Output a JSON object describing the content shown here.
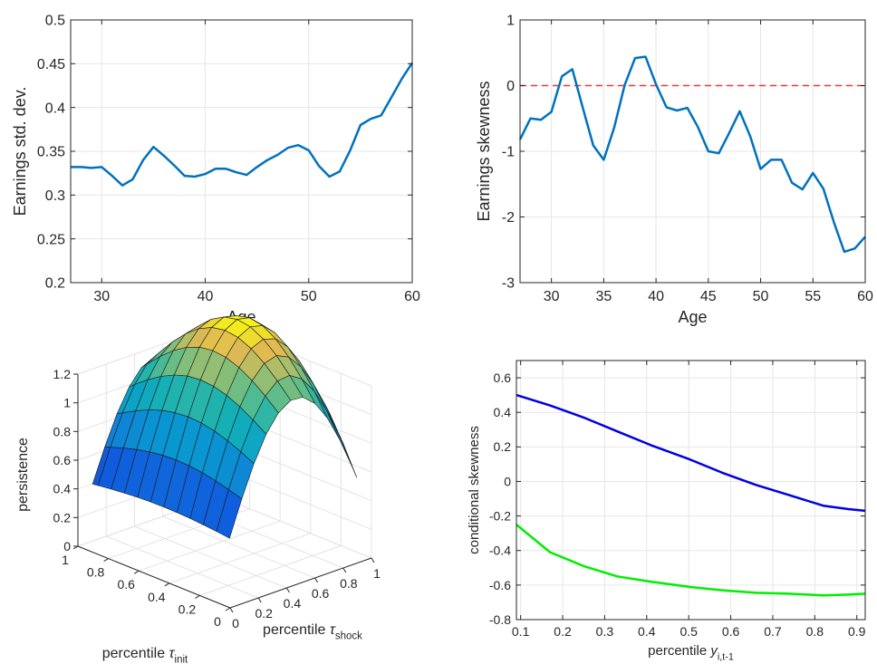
{
  "chart_data": [
    {
      "type": "line",
      "xlabel": "Age",
      "ylabel": "Earnings std. dev.",
      "xlim": [
        27,
        60
      ],
      "ylim": [
        0.2,
        0.5
      ],
      "xticks": [
        30,
        40,
        50,
        60
      ],
      "yticks": [
        0.2,
        0.25,
        0.3,
        0.35,
        0.4,
        0.45,
        0.5
      ],
      "grid": true,
      "series": [
        {
          "color": "#0072BD",
          "x": [
            27,
            28,
            29,
            30,
            31,
            32,
            33,
            34,
            35,
            36,
            37,
            38,
            39,
            40,
            41,
            42,
            43,
            44,
            45,
            46,
            47,
            48,
            49,
            50,
            51,
            52,
            53,
            54,
            55,
            56,
            57,
            58,
            59,
            60
          ],
          "y": [
            0.332,
            0.332,
            0.331,
            0.332,
            0.322,
            0.311,
            0.318,
            0.34,
            0.355,
            0.345,
            0.334,
            0.322,
            0.321,
            0.324,
            0.33,
            0.33,
            0.326,
            0.323,
            0.332,
            0.34,
            0.346,
            0.354,
            0.357,
            0.351,
            0.333,
            0.321,
            0.327,
            0.351,
            0.38,
            0.387,
            0.391,
            0.412,
            0.433,
            0.451
          ]
        }
      ]
    },
    {
      "type": "line",
      "xlabel": "Age",
      "ylabel": "Earnings skewness",
      "xlim": [
        27,
        60
      ],
      "ylim": [
        -3,
        1
      ],
      "xticks": [
        30,
        35,
        40,
        45,
        50,
        55,
        60
      ],
      "yticks": [
        -3,
        -2,
        -1,
        0,
        1
      ],
      "grid": true,
      "reference_line": {
        "y": 0,
        "style": "dashed",
        "color": "#FF3333"
      },
      "series": [
        {
          "color": "#0072BD",
          "x": [
            27,
            28,
            29,
            30,
            31,
            32,
            33,
            34,
            35,
            36,
            37,
            38,
            39,
            40,
            41,
            42,
            43,
            44,
            45,
            46,
            47,
            48,
            49,
            50,
            51,
            52,
            53,
            54,
            55,
            56,
            57,
            58,
            59,
            60
          ],
          "y": [
            -0.82,
            -0.5,
            -0.52,
            -0.4,
            0.14,
            0.25,
            -0.34,
            -0.91,
            -1.13,
            -0.64,
            0.01,
            0.42,
            0.44,
            0.02,
            -0.33,
            -0.38,
            -0.34,
            -0.63,
            -1.0,
            -1.03,
            -0.72,
            -0.39,
            -0.77,
            -1.27,
            -1.13,
            -1.13,
            -1.48,
            -1.58,
            -1.33,
            -1.57,
            -2.08,
            -2.53,
            -2.48,
            -2.3
          ]
        }
      ]
    },
    {
      "type": "surface",
      "xlabel": "percentile τ_shock",
      "ylabel": "percentile τ_init",
      "zlabel": "persistence",
      "xlim": [
        0,
        1
      ],
      "ylim": [
        0,
        1
      ],
      "zlim": [
        0,
        1.2
      ],
      "xticks": [
        0,
        0.2,
        0.4,
        0.6,
        0.8,
        1
      ],
      "yticks": [
        0,
        0.2,
        0.4,
        0.6,
        0.8,
        1
      ],
      "zticks": [
        0,
        0.2,
        0.4,
        0.6,
        0.8,
        1,
        1.2
      ],
      "x_grid": [
        0.05,
        0.1364,
        0.2227,
        0.3091,
        0.3955,
        0.4818,
        0.5682,
        0.6545,
        0.7409,
        0.8273,
        0.9136,
        0.95
      ],
      "y_grid": [
        0.05,
        0.1364,
        0.2227,
        0.3091,
        0.3955,
        0.4818,
        0.5682,
        0.6545,
        0.7409,
        0.8273,
        0.9136,
        0.95
      ],
      "surface_model": {
        "z0": 0.3,
        "a": 0.9,
        "b": 0.85,
        "c": 0.2,
        "form": "z0 + a*sin(pi*x) + b*sin(pi*y)*x - c*x*y"
      },
      "colormap": "parula"
    },
    {
      "type": "line",
      "xlabel": "percentile y_{i,t-1}",
      "ylabel": "conditional skewness",
      "xlim": [
        0.09,
        0.92
      ],
      "ylim": [
        -0.8,
        0.7
      ],
      "xticks": [
        0.1,
        0.2,
        0.3,
        0.4,
        0.5,
        0.6,
        0.7,
        0.8,
        0.9
      ],
      "yticks": [
        -0.8,
        -0.6,
        -0.4,
        -0.2,
        0,
        0.2,
        0.4,
        0.6
      ],
      "grid": true,
      "series": [
        {
          "color": "#0000E0",
          "x": [
            0.09,
            0.17,
            0.25,
            0.33,
            0.41,
            0.5,
            0.58,
            0.66,
            0.74,
            0.82,
            0.88,
            0.92
          ],
          "y": [
            0.5,
            0.44,
            0.37,
            0.29,
            0.21,
            0.13,
            0.05,
            -0.02,
            -0.08,
            -0.14,
            -0.16,
            -0.17
          ]
        },
        {
          "color": "#00EE00",
          "x": [
            0.09,
            0.17,
            0.25,
            0.33,
            0.41,
            0.5,
            0.58,
            0.66,
            0.74,
            0.82,
            0.88,
            0.92
          ],
          "y": [
            -0.25,
            -0.41,
            -0.49,
            -0.55,
            -0.58,
            -0.61,
            -0.63,
            -0.645,
            -0.65,
            -0.66,
            -0.655,
            -0.65
          ]
        }
      ]
    }
  ]
}
